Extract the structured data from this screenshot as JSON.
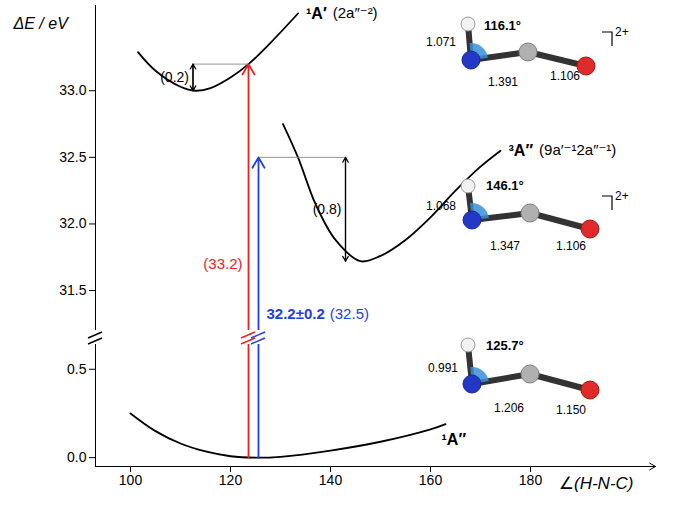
{
  "chart_data": [
    {
      "type": "line",
      "y_label": "ΔE / eV",
      "tick_labels": "y",
      "xlim": [
        93,
        205
      ],
      "ylim": [
        31.2,
        33.64
      ],
      "yticks": [
        31.5,
        {
          "value": 32,
          "label": "32.0"
        },
        32.5,
        {
          "value": 33,
          "label": "33.0"
        }
      ],
      "series": [
        {
          "name": "¹A′",
          "configuration": "(2a″⁻²)",
          "color": "#000000",
          "x": [
            101.5,
            105,
            110,
            113,
            116,
            120,
            123.6,
            128,
            133.5
          ],
          "values": [
            33.29,
            33.15,
            33.03,
            33.0,
            33.02,
            33.1,
            33.2,
            33.36,
            33.58
          ],
          "structure": {
            "angle": "116.1°",
            "bonds": [
              "1.071",
              "1.391",
              "1.106"
            ],
            "charge": "2+"
          }
        },
        {
          "name": "³A″",
          "configuration": "(9a′⁻¹2a″⁻¹)",
          "color": "#000000",
          "x": [
            130.5,
            133.5,
            137,
            141,
            146,
            150,
            155,
            160,
            165,
            170,
            174
          ],
          "values": [
            32.75,
            32.5,
            32.15,
            31.88,
            31.72,
            31.76,
            31.88,
            32.05,
            32.25,
            32.43,
            32.55
          ],
          "structure": {
            "angle": "146.1°",
            "bonds": [
              "1.068",
              "1.347",
              "1.106"
            ],
            "charge": "2+"
          }
        }
      ],
      "transitions": [
        {
          "x": 123.6,
          "from": 0,
          "to": 33.2,
          "label": "(33.2)",
          "color": "#e52521"
        },
        {
          "x": 125.6,
          "from": 0,
          "to": 32.5,
          "label": "(32.5)",
          "measured_label": "32.2±0.2",
          "color": "#1f3fe0"
        }
      ],
      "gaps": [
        {
          "x": 112.5,
          "from": 33.0,
          "to": 33.2,
          "label": "(0.2)"
        },
        {
          "x": 143,
          "from": 31.72,
          "to": 32.5,
          "label": "(0.8)"
        }
      ]
    },
    {
      "type": "line",
      "x_label": "∠(H-N-C)",
      "xlim": [
        93,
        205
      ],
      "xticks": [
        100,
        120,
        140,
        160,
        180
      ],
      "ylim": [
        -0.05,
        0.64
      ],
      "yticks": [
        {
          "value": 0,
          "label": "0.0"
        },
        0.5
      ],
      "series": [
        {
          "name": "¹A″",
          "color": "#000000",
          "x": [
            100,
            105,
            110,
            115,
            120,
            125,
            130,
            140,
            150,
            160,
            163
          ],
          "values": [
            0.25,
            0.15,
            0.08,
            0.035,
            0.008,
            0,
            0.005,
            0.04,
            0.09,
            0.16,
            0.19
          ],
          "structure": {
            "angle": "125.7°",
            "bonds": [
              "0.991",
              "1.206",
              "1.150"
            ]
          }
        }
      ]
    }
  ]
}
